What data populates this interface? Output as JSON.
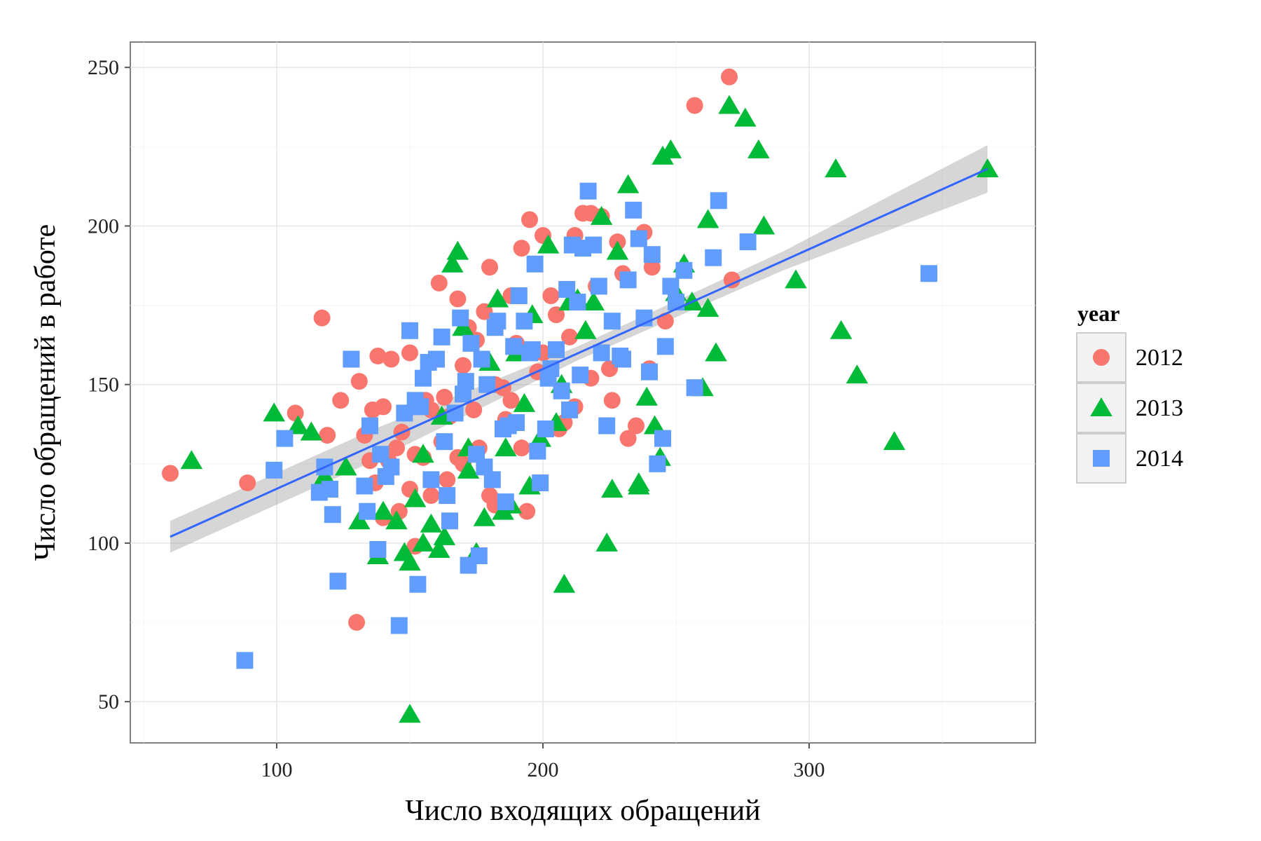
{
  "chart_data": {
    "type": "scatter",
    "xlabel": "Число входящих обращений",
    "ylabel": "Число обращений в работе",
    "xlim": [
      45,
      385
    ],
    "ylim": [
      37,
      258
    ],
    "x_ticks": [
      100,
      200,
      300
    ],
    "y_ticks": [
      50,
      100,
      150,
      200,
      250
    ],
    "grid": true,
    "legend": {
      "title": "year",
      "position": "right"
    },
    "colors": {
      "2012": "#F8766D",
      "2013": "#00BA38",
      "2014": "#619CFF",
      "fit_line": "#3366FF",
      "ci_band": "#999999"
    },
    "series": [
      {
        "name": "2012",
        "shape": "circle",
        "x": [
          60,
          89,
          107,
          117,
          119,
          124,
          131,
          133,
          136,
          138,
          140,
          143,
          145,
          147,
          150,
          152,
          155,
          158,
          161,
          163,
          165,
          168,
          170,
          172,
          175,
          178,
          180,
          182,
          185,
          188,
          190,
          192,
          195,
          197,
          200,
          203,
          205,
          208,
          210,
          212,
          215,
          218,
          220,
          222,
          225,
          228,
          230,
          235,
          238,
          241,
          130,
          135,
          140,
          146,
          152,
          158,
          164,
          170,
          176,
          182,
          188,
          194,
          200,
          206,
          212,
          218,
          226,
          232,
          240,
          246,
          257,
          270,
          271,
          137,
          142,
          150,
          156,
          162,
          168,
          174,
          180,
          186,
          192,
          198
        ],
        "y": [
          122,
          119,
          141,
          171,
          134,
          145,
          151,
          134,
          142,
          159,
          143,
          158,
          130,
          135,
          160,
          128,
          127,
          142,
          182,
          146,
          140,
          177,
          156,
          168,
          164,
          173,
          187,
          150,
          149,
          178,
          163,
          193,
          202,
          160,
          197,
          178,
          172,
          138,
          165,
          197,
          204,
          204,
          181,
          203,
          155,
          195,
          185,
          137,
          198,
          187,
          75,
          126,
          108,
          110,
          99,
          115,
          120,
          125,
          130,
          112,
          145,
          110,
          160,
          136,
          143,
          152,
          145,
          133,
          155,
          170,
          238,
          247,
          183,
          119,
          126,
          117,
          145,
          132,
          127,
          142,
          115,
          139,
          130,
          154
        ]
      },
      {
        "name": "2013",
        "shape": "triangle",
        "x": [
          68,
          99,
          108,
          113,
          118,
          126,
          131,
          138,
          140,
          145,
          148,
          150,
          152,
          155,
          158,
          161,
          163,
          166,
          168,
          170,
          172,
          175,
          178,
          180,
          183,
          186,
          188,
          190,
          193,
          196,
          199,
          202,
          205,
          207,
          210,
          213,
          216,
          219,
          222,
          226,
          228,
          232,
          236,
          239,
          242,
          245,
          248,
          250,
          253,
          256,
          260,
          262,
          265,
          270,
          276,
          281,
          283,
          295,
          310,
          312,
          318,
          332,
          367,
          150,
          155,
          162,
          172,
          185,
          195,
          208,
          224,
          236,
          244,
          262
        ],
        "y": [
          126,
          141,
          137,
          135,
          121,
          124,
          107,
          96,
          110,
          107,
          97,
          94,
          114,
          128,
          106,
          98,
          102,
          188,
          192,
          168,
          130,
          97,
          108,
          157,
          177,
          130,
          112,
          160,
          144,
          172,
          133,
          194,
          138,
          150,
          176,
          177,
          167,
          176,
          203,
          117,
          192,
          213,
          119,
          146,
          137,
          222,
          224,
          179,
          188,
          176,
          149,
          174,
          160,
          238,
          234,
          224,
          200,
          183,
          218,
          167,
          153,
          132,
          218,
          46,
          100,
          140,
          123,
          110,
          118,
          87,
          100,
          118,
          127,
          202
        ]
      },
      {
        "name": "2014",
        "shape": "square",
        "x": [
          88,
          99,
          103,
          116,
          118,
          120,
          121,
          123,
          128,
          133,
          135,
          138,
          139,
          141,
          143,
          146,
          148,
          150,
          152,
          153,
          155,
          157,
          160,
          162,
          163,
          165,
          167,
          169,
          171,
          173,
          175,
          177,
          179,
          181,
          183,
          185,
          187,
          189,
          191,
          193,
          195,
          197,
          199,
          201,
          203,
          205,
          207,
          209,
          211,
          213,
          215,
          217,
          219,
          221,
          224,
          226,
          229,
          232,
          234,
          236,
          238,
          241,
          243,
          246,
          248,
          250,
          253,
          257,
          264,
          266,
          277,
          345,
          164,
          170,
          176,
          182,
          190,
          196,
          202,
          214,
          222,
          245,
          134,
          154,
          172,
          158,
          178,
          186,
          198,
          210,
          230,
          240
        ],
        "y": [
          63,
          123,
          133,
          116,
          124,
          117,
          109,
          88,
          158,
          118,
          137,
          98,
          128,
          121,
          124,
          74,
          141,
          167,
          145,
          87,
          152,
          157,
          158,
          165,
          132,
          107,
          141,
          171,
          151,
          163,
          128,
          158,
          150,
          120,
          170,
          136,
          137,
          162,
          178,
          170,
          160,
          188,
          119,
          136,
          155,
          161,
          148,
          180,
          194,
          176,
          193,
          211,
          194,
          181,
          137,
          170,
          159,
          183,
          205,
          196,
          171,
          191,
          125,
          162,
          181,
          176,
          186,
          149,
          190,
          208,
          195,
          185,
          115,
          147,
          96,
          168,
          138,
          161,
          152,
          153,
          160,
          133,
          110,
          143,
          93,
          120,
          124,
          113,
          129,
          142,
          158,
          154
        ]
      }
    ],
    "fit": {
      "method": "linear",
      "x": [
        60,
        367
      ],
      "y": [
        102,
        218
      ],
      "ci_half_width": [
        5,
        5,
        2.2,
        3,
        7.5
      ]
    }
  }
}
